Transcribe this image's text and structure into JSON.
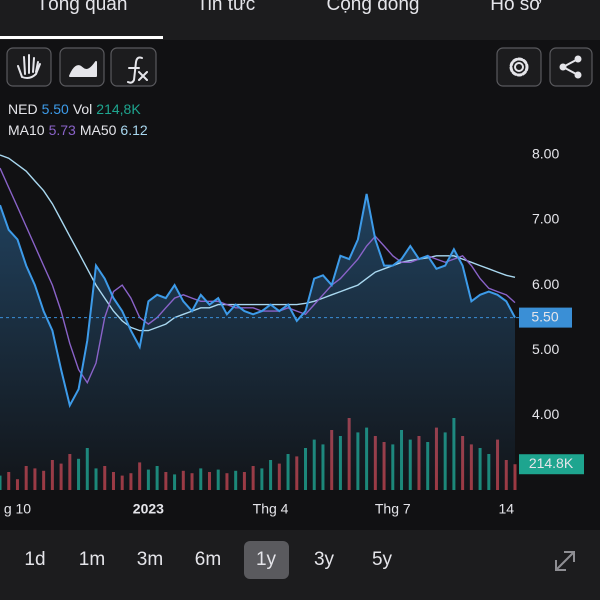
{
  "tabs": [
    "Tổng quan",
    "Tin tức",
    "Cộng đồng",
    "Hồ sơ"
  ],
  "active_tab": 0,
  "legend": {
    "symbol": "NED",
    "price": "5.50",
    "vol_label": "Vol",
    "vol": "214,8K",
    "ma10_label": "MA10",
    "ma10": "5.73",
    "ma50_label": "MA50",
    "ma50": "6.12"
  },
  "ranges": [
    "1d",
    "1m",
    "3m",
    "6m",
    "1y",
    "3y",
    "5y"
  ],
  "active_range": 4,
  "chart_data": {
    "type": "line",
    "categories": [
      null,
      null,
      "g 10",
      null,
      null,
      null,
      null,
      null,
      null,
      null,
      null,
      null,
      null,
      null,
      null,
      null,
      null,
      "2023",
      null,
      null,
      null,
      null,
      null,
      null,
      null,
      null,
      null,
      null,
      null,
      null,
      null,
      "Thg 4",
      null,
      null,
      null,
      null,
      null,
      null,
      null,
      null,
      null,
      null,
      null,
      null,
      null,
      "Thg 7",
      null,
      null,
      null,
      null,
      null,
      null,
      null,
      null,
      null,
      null,
      null,
      null,
      "14",
      null
    ],
    "series": [
      {
        "name": "NED",
        "color": "#3d9be9",
        "values": [
          7.23,
          6.85,
          6.7,
          6.3,
          6.0,
          5.6,
          5.3,
          4.7,
          4.15,
          4.4,
          5.15,
          6.3,
          6.1,
          5.8,
          5.6,
          5.3,
          5.05,
          5.75,
          5.85,
          5.8,
          6.0,
          5.75,
          5.6,
          5.85,
          5.7,
          5.8,
          5.55,
          5.7,
          5.6,
          5.55,
          5.6,
          5.7,
          5.6,
          5.7,
          5.45,
          5.6,
          6.1,
          6.15,
          6.0,
          6.45,
          6.4,
          6.7,
          7.4,
          6.7,
          6.3,
          6.3,
          6.4,
          6.6,
          6.4,
          6.45,
          6.25,
          6.3,
          6.55,
          6.3,
          5.75,
          5.85,
          5.9,
          5.85,
          5.75,
          5.5
        ]
      },
      {
        "name": "MA10",
        "color": "#8a63c9",
        "values": [
          7.8,
          7.5,
          7.2,
          6.9,
          6.6,
          6.3,
          6.0,
          5.6,
          5.1,
          4.7,
          4.5,
          4.8,
          5.5,
          5.9,
          6.0,
          5.8,
          5.5,
          5.4,
          5.5,
          5.65,
          5.8,
          5.85,
          5.8,
          5.75,
          5.75,
          5.75,
          5.7,
          5.65,
          5.65,
          5.65,
          5.6,
          5.6,
          5.6,
          5.65,
          5.6,
          5.55,
          5.7,
          5.85,
          6.0,
          6.1,
          6.25,
          6.4,
          6.6,
          6.75,
          6.6,
          6.45,
          6.35,
          6.35,
          6.4,
          6.45,
          6.4,
          6.35,
          6.4,
          6.45,
          6.3,
          6.1,
          5.95,
          5.9,
          5.85,
          5.73
        ]
      },
      {
        "name": "MA50",
        "color": "#a9d8f0",
        "values": [
          8.0,
          7.95,
          7.85,
          7.75,
          7.6,
          7.45,
          7.25,
          7.0,
          6.75,
          6.5,
          6.25,
          6.0,
          5.8,
          5.6,
          5.45,
          5.35,
          5.3,
          5.3,
          5.35,
          5.4,
          5.5,
          5.55,
          5.6,
          5.65,
          5.65,
          5.7,
          5.7,
          5.7,
          5.7,
          5.7,
          5.7,
          5.7,
          5.7,
          5.7,
          5.7,
          5.72,
          5.75,
          5.8,
          5.85,
          5.9,
          5.95,
          6.0,
          6.1,
          6.2,
          6.25,
          6.3,
          6.35,
          6.38,
          6.4,
          6.42,
          6.45,
          6.45,
          6.45,
          6.4,
          6.35,
          6.3,
          6.25,
          6.2,
          6.15,
          6.12
        ]
      }
    ],
    "volume": {
      "values": [
        120,
        150,
        90,
        200,
        180,
        160,
        250,
        220,
        300,
        260,
        350,
        180,
        200,
        150,
        120,
        140,
        230,
        170,
        200,
        150,
        130,
        160,
        140,
        180,
        150,
        170,
        140,
        160,
        150,
        200,
        180,
        250,
        220,
        300,
        280,
        350,
        420,
        380,
        500,
        450,
        600,
        480,
        520,
        450,
        400,
        380,
        500,
        420,
        450,
        400,
        520,
        480,
        600,
        450,
        380,
        350,
        300,
        420,
        250,
        214.8
      ],
      "ylim": [
        0,
        1000
      ],
      "up_color": "#1ea58f",
      "down_color": "#c2414b",
      "last_label": {
        "value": 214.8,
        "label": "214.8K"
      },
      "label_color": "#1ea58f"
    },
    "ylim": [
      2.85,
      8.23
    ],
    "yticks": [
      {
        "value": 8,
        "label": "8.00"
      },
      {
        "value": 7,
        "label": "7.00"
      },
      {
        "value": 6,
        "label": "6.00"
      },
      {
        "value": 5,
        "label": "5.00"
      },
      {
        "value": 4,
        "label": "4.00"
      }
    ],
    "price_label": {
      "value": 5.5,
      "label": "5.50"
    },
    "price_label_color": "#3a8fd6",
    "grid": false
  }
}
